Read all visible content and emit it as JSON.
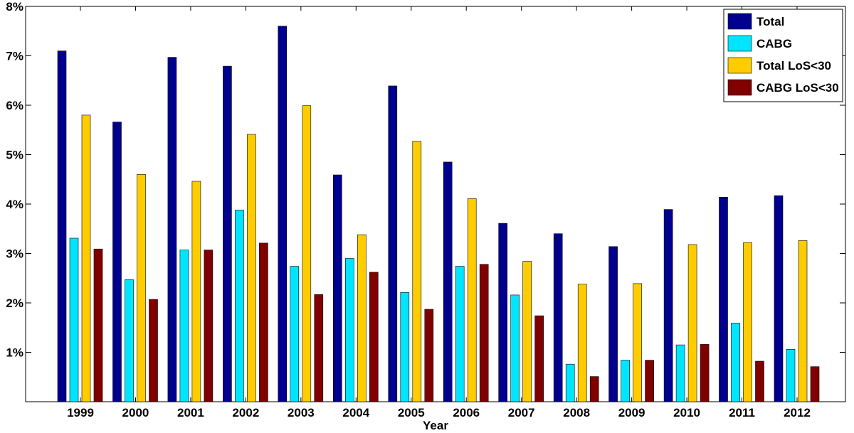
{
  "chart_data": {
    "type": "bar",
    "xlabel": "Year",
    "ylabel": "",
    "ylim": [
      0,
      8
    ],
    "yticks": [
      1,
      2,
      3,
      4,
      5,
      6,
      7,
      8
    ],
    "ytick_labels": [
      "1%",
      "2%",
      "3%",
      "4%",
      "5%",
      "6%",
      "7%",
      "8%"
    ],
    "categories": [
      "1999",
      "2000",
      "2001",
      "2002",
      "2003",
      "2004",
      "2005",
      "2006",
      "2007",
      "2008",
      "2009",
      "2010",
      "2011",
      "2012"
    ],
    "series": [
      {
        "name": "Total",
        "color": "#00008f",
        "values": [
          7.1,
          5.66,
          6.97,
          6.79,
          7.6,
          4.59,
          6.39,
          4.85,
          3.61,
          3.4,
          3.14,
          3.89,
          4.14,
          4.17
        ]
      },
      {
        "name": "CABG",
        "color": "#00e5ff",
        "values": [
          3.31,
          2.47,
          3.07,
          3.88,
          2.74,
          2.9,
          2.21,
          2.74,
          2.16,
          0.76,
          0.84,
          1.15,
          1.59,
          1.06
        ]
      },
      {
        "name": "Total LoS<30",
        "color": "#ffcc00",
        "values": [
          5.8,
          4.6,
          4.46,
          5.41,
          5.99,
          3.38,
          5.27,
          4.11,
          2.84,
          2.38,
          2.39,
          3.18,
          3.22,
          3.26
        ]
      },
      {
        "name": "CABG LoS<30",
        "color": "#800000",
        "values": [
          3.09,
          2.07,
          3.07,
          3.21,
          2.17,
          2.62,
          1.87,
          2.78,
          1.74,
          0.51,
          0.84,
          1.16,
          0.82,
          0.71
        ]
      }
    ],
    "legend_position": "top-right",
    "grid": false
  }
}
